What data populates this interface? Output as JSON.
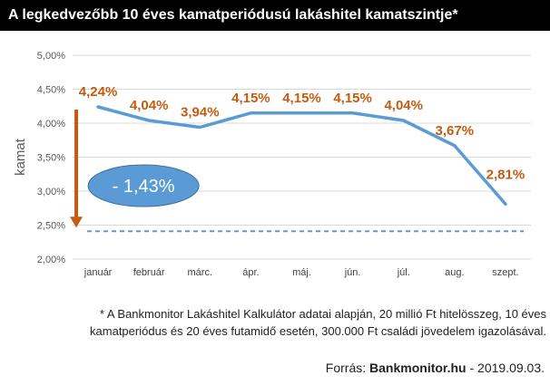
{
  "title": "A legkedvezőbb 10 éves kamatperiódusú lakáshitel kamatszintje*",
  "chart_data": {
    "type": "line",
    "ylabel": "kamat",
    "xlabel": "",
    "categories": [
      "január",
      "február",
      "márc.",
      "ápr.",
      "máj.",
      "jún.",
      "júl.",
      "aug.",
      "szept."
    ],
    "series": [
      {
        "values": [
          4.24,
          4.04,
          3.94,
          4.15,
          4.15,
          4.15,
          4.04,
          3.67,
          2.81
        ]
      }
    ],
    "data_labels": [
      "4,24%",
      "4,04%",
      "3,94%",
      "4,15%",
      "4,15%",
      "4,15%",
      "4,04%",
      "3,67%",
      "2,81%"
    ],
    "ylim": [
      2.0,
      5.0
    ],
    "yticks": [
      {
        "value": 2.0,
        "label": "2,00%"
      },
      {
        "value": 2.5,
        "label": "2,50%"
      },
      {
        "value": 3.0,
        "label": "3,00%"
      },
      {
        "value": 3.5,
        "label": "3,50%"
      },
      {
        "value": 4.0,
        "label": "4,00%"
      },
      {
        "value": 4.5,
        "label": "4,50%"
      },
      {
        "value": 5.0,
        "label": "5,00%"
      }
    ],
    "reference_line": {
      "value": 2.41,
      "style": "dashed"
    },
    "annotation": {
      "text": "- 1,43%"
    },
    "grid": true,
    "colors": {
      "line": "#5b9bd5",
      "data_label": "#c55a11",
      "arrow": "#c55a11",
      "reference": "#5b9bd5",
      "bubble": "#5b9bd5",
      "grid": "#d9d9d9"
    }
  },
  "footnote": {
    "line1": "* A Bankmonitor Lakáshitel Kalkulátor adatai alapján, 20 millió Ft hitelösszeg, 10 éves",
    "line2": "kamatperiódus és 20 éves futamidő esetén, 300.000 Ft családi jövedelem igazolásával."
  },
  "source": {
    "prefix": "Forrás: ",
    "brand": "Bankmonitor.hu",
    "suffix": " - 2019.09.03."
  }
}
